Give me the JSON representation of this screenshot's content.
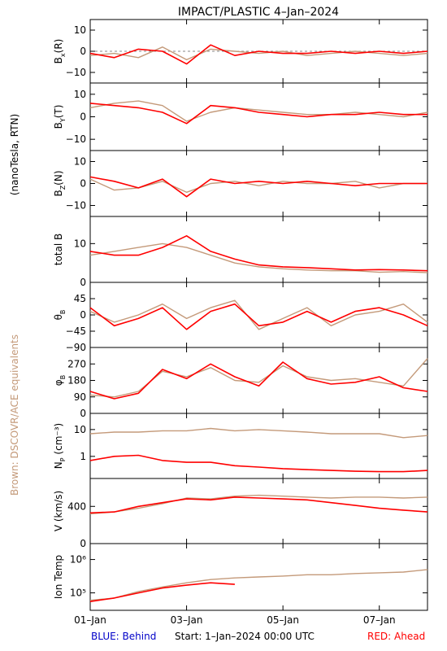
{
  "title": "IMPACT/PLASTIC     4–Jan–2024",
  "left_label_top": "(nanoTesla, RTN)",
  "left_label_bottom": "Brown: DSCOVR/ACE equivalents",
  "footer": {
    "behind": "BLUE: Behind",
    "start": "Start:   1–Jan–2024 00:00 UTC",
    "ahead": "RED: Ahead"
  },
  "colors": {
    "ahead": "#ff0000",
    "earth": "#c49a7a",
    "behind": "#0000c8",
    "axes": "#000000"
  },
  "chart_data": {
    "type": "line",
    "x_range": [
      "2024-01-01 00:00",
      "2024-01-08 00:00"
    ],
    "x_ticks": [
      {
        "label": "01–Jan",
        "day": 1
      },
      {
        "label": "03–Jan",
        "day": 3
      },
      {
        "label": "05–Jan",
        "day": 5
      },
      {
        "label": "07–Jan",
        "day": 7
      }
    ],
    "panels": [
      {
        "id": "bx",
        "label": "BX(R)",
        "label_main": "B",
        "label_sub": "x",
        "label_tail": "(R)",
        "ylim": [
          -15,
          15
        ],
        "yticks": [
          "10",
          "0",
          "−10"
        ],
        "ytick_values": [
          10,
          0,
          -10
        ],
        "zero_line": true,
        "series": [
          {
            "source": "earth",
            "days": [
              1,
              1.5,
              2,
              2.5,
              3,
              3.5,
              4,
              4.5,
              5,
              5.5,
              6,
              6.5,
              7,
              7.5,
              8
            ],
            "values": [
              -2,
              -1,
              -3,
              2,
              -4,
              1,
              0,
              -1,
              0,
              -2,
              -1,
              0,
              -1,
              -2,
              -1
            ]
          },
          {
            "source": "ahead",
            "days": [
              1,
              1.5,
              2,
              2.5,
              3,
              3.5,
              4,
              4.5,
              5,
              5.5,
              6,
              6.5,
              7,
              7.5,
              8
            ],
            "values": [
              -1,
              -3,
              1,
              0,
              -6,
              3,
              -2,
              0,
              -1,
              -1,
              0,
              -1,
              0,
              -1,
              0
            ]
          }
        ]
      },
      {
        "id": "by",
        "label": "BY(T)",
        "label_main": "B",
        "label_sub": "Y",
        "label_tail": "(T)",
        "ylim": [
          -15,
          15
        ],
        "yticks": [
          "10",
          "0",
          "−10"
        ],
        "ytick_values": [
          10,
          0,
          -10
        ],
        "zero_line": false,
        "series": [
          {
            "source": "earth",
            "days": [
              1,
              1.5,
              2,
              2.5,
              3,
              3.5,
              4,
              4.5,
              5,
              5.5,
              6,
              6.5,
              7,
              7.5,
              8
            ],
            "values": [
              4,
              6,
              7,
              5,
              -2,
              2,
              4,
              3,
              2,
              1,
              1,
              2,
              1,
              0,
              2
            ]
          },
          {
            "source": "ahead",
            "days": [
              1,
              1.5,
              2,
              2.5,
              3,
              3.5,
              4,
              4.5,
              5,
              5.5,
              6,
              6.5,
              7,
              7.5,
              8
            ],
            "values": [
              6,
              5,
              4,
              2,
              -3,
              5,
              4,
              2,
              1,
              0,
              1,
              1,
              2,
              1,
              1
            ]
          }
        ]
      },
      {
        "id": "bz",
        "label": "BZ(N)",
        "label_main": "B",
        "label_sub": "Z",
        "label_tail": "(N)",
        "ylim": [
          -15,
          15
        ],
        "yticks": [
          "10",
          "0",
          "−10"
        ],
        "ytick_values": [
          10,
          0,
          -10
        ],
        "zero_line": false,
        "series": [
          {
            "source": "earth",
            "days": [
              1,
              1.5,
              2,
              2.5,
              3,
              3.5,
              4,
              4.5,
              5,
              5.5,
              6,
              6.5,
              7,
              7.5,
              8
            ],
            "values": [
              2,
              -3,
              -2,
              1,
              -4,
              0,
              1,
              -1,
              1,
              0,
              0,
              1,
              -2,
              0,
              0
            ]
          },
          {
            "source": "ahead",
            "days": [
              1,
              1.5,
              2,
              2.5,
              3,
              3.5,
              4,
              4.5,
              5,
              5.5,
              6,
              6.5,
              7,
              7.5,
              8
            ],
            "values": [
              3,
              1,
              -2,
              2,
              -6,
              2,
              0,
              1,
              0,
              1,
              0,
              -1,
              0,
              0,
              0
            ]
          }
        ]
      },
      {
        "id": "btot",
        "label": "total B",
        "label_main": "total B",
        "label_sub": "",
        "label_tail": "",
        "ylim": [
          0,
          17
        ],
        "yticks": [
          "10",
          "0"
        ],
        "ytick_values": [
          10,
          0
        ],
        "zero_line": false,
        "series": [
          {
            "source": "earth",
            "days": [
              1,
              1.5,
              2,
              2.5,
              3,
              3.5,
              4,
              4.5,
              5,
              5.5,
              6,
              6.5,
              7,
              7.5,
              8
            ],
            "values": [
              7,
              8,
              9,
              10,
              9,
              7,
              5,
              4,
              3.5,
              3.2,
              3,
              3,
              2.6,
              2.8,
              2.5
            ]
          },
          {
            "source": "ahead",
            "days": [
              1,
              1.5,
              2,
              2.5,
              3,
              3.5,
              4,
              4.5,
              5,
              5.5,
              6,
              6.5,
              7,
              7.5,
              8
            ],
            "values": [
              8,
              7,
              7,
              9,
              12,
              8,
              6,
              4.5,
              4,
              3.8,
              3.5,
              3.2,
              3.3,
              3.2,
              3
            ]
          }
        ]
      },
      {
        "id": "theta",
        "label": "θB",
        "label_main": "θ",
        "label_sub": "B",
        "label_tail": "",
        "ylim": [
          -90,
          90
        ],
        "yticks": [
          "45",
          "0",
          "−45",
          "−90"
        ],
        "ytick_values": [
          45,
          0,
          -45,
          -90
        ],
        "zero_line": false,
        "series": [
          {
            "source": "earth",
            "days": [
              1,
              1.5,
              2,
              2.5,
              3,
              3.5,
              4,
              4.5,
              5,
              5.5,
              6,
              6.5,
              7,
              7.5,
              8
            ],
            "values": [
              10,
              -20,
              0,
              30,
              -10,
              20,
              40,
              -40,
              -10,
              20,
              -30,
              0,
              10,
              30,
              -20
            ]
          },
          {
            "source": "ahead",
            "days": [
              1,
              1.5,
              2,
              2.5,
              3,
              3.5,
              4,
              4.5,
              5,
              5.5,
              6,
              6.5,
              7,
              7.5,
              8
            ],
            "values": [
              20,
              -30,
              -10,
              20,
              -40,
              10,
              30,
              -30,
              -20,
              10,
              -20,
              10,
              20,
              0,
              -30
            ]
          }
        ]
      },
      {
        "id": "phi",
        "label": "φB",
        "label_main": "φ",
        "label_sub": "B",
        "label_tail": "",
        "ylim": [
          0,
          360
        ],
        "yticks": [
          "270",
          "180",
          "90",
          "0"
        ],
        "ytick_values": [
          270,
          180,
          90,
          0
        ],
        "zero_line": false,
        "series": [
          {
            "source": "earth",
            "days": [
              1,
              1.5,
              2,
              2.5,
              3,
              3.5,
              4,
              4.5,
              5,
              5.5,
              6,
              6.5,
              7,
              7.5,
              8
            ],
            "values": [
              100,
              90,
              120,
              230,
              200,
              250,
              180,
              170,
              260,
              200,
              180,
              190,
              170,
              150,
              300
            ]
          },
          {
            "source": "ahead",
            "days": [
              1,
              1.5,
              2,
              2.5,
              3,
              3.5,
              4,
              4.5,
              5,
              5.5,
              6,
              6.5,
              7,
              7.5,
              8
            ],
            "values": [
              120,
              80,
              110,
              240,
              190,
              270,
              200,
              150,
              280,
              190,
              160,
              170,
              200,
              140,
              120
            ]
          }
        ]
      },
      {
        "id": "np",
        "label": "NP (cm−3)",
        "label_main": "N",
        "label_sub": "P",
        "label_tail": " (cm⁻³)",
        "ylim": [
          0.15,
          40
        ],
        "log": true,
        "yticks": [
          "10",
          "1"
        ],
        "ytick_values": [
          10,
          1
        ],
        "zero_line": false,
        "series": [
          {
            "source": "earth",
            "days": [
              1,
              1.5,
              2,
              2.5,
              3,
              3.5,
              4,
              4.5,
              5,
              5.5,
              6,
              6.5,
              7,
              7.5,
              8
            ],
            "values": [
              7,
              8,
              8,
              9,
              9,
              11,
              9,
              10,
              9,
              8,
              7,
              7,
              7,
              5,
              6
            ]
          },
          {
            "source": "ahead",
            "days": [
              1,
              1.5,
              2,
              2.5,
              3,
              3.5,
              4,
              4.5,
              5,
              5.5,
              6,
              6.5,
              7,
              7.5,
              8
            ],
            "values": [
              0.7,
              1.0,
              1.1,
              0.7,
              0.6,
              0.6,
              0.45,
              0.4,
              0.35,
              0.32,
              0.3,
              0.28,
              0.27,
              0.27,
              0.3
            ]
          }
        ]
      },
      {
        "id": "v",
        "label": "V (km/s)",
        "label_main": "V (km/s)",
        "label_sub": "",
        "label_tail": "",
        "ylim": [
          0,
          700
        ],
        "yticks": [
          "400",
          "0"
        ],
        "ytick_values": [
          400,
          0
        ],
        "zero_line": false,
        "series": [
          {
            "source": "earth",
            "days": [
              1,
              1.5,
              2,
              2.5,
              3,
              3.5,
              4,
              4.5,
              5,
              5.5,
              6,
              6.5,
              7,
              7.5,
              8
            ],
            "values": [
              320,
              340,
              380,
              430,
              490,
              480,
              510,
              520,
              510,
              500,
              490,
              500,
              500,
              490,
              500
            ]
          },
          {
            "source": "ahead",
            "days": [
              1,
              1.5,
              2,
              2.5,
              3,
              3.5,
              4,
              4.5,
              5,
              5.5,
              6,
              6.5,
              7,
              7.5,
              8
            ],
            "values": [
              330,
              340,
              400,
              440,
              480,
              470,
              500,
              490,
              480,
              470,
              440,
              410,
              380,
              360,
              340
            ]
          }
        ]
      },
      {
        "id": "temp",
        "label": "Ion Temp",
        "label_main": "Ion Temp",
        "label_sub": "",
        "label_tail": "",
        "ylim": [
          30000,
          3000000
        ],
        "log": true,
        "yticks": [
          "10⁶",
          "10⁵"
        ],
        "ytick_values": [
          1000000,
          100000
        ],
        "zero_line": false,
        "series": [
          {
            "source": "earth",
            "days": [
              1,
              1.5,
              2,
              2.5,
              3,
              3.5,
              4,
              4.5,
              5,
              5.5,
              6,
              6.5,
              7,
              7.5,
              8
            ],
            "values": [
              60000,
              70000,
              110000,
              150000,
              200000,
              250000,
              280000,
              300000,
              320000,
              350000,
              350000,
              380000,
              400000,
              420000,
              500000
            ]
          },
          {
            "source": "ahead",
            "days": [
              1,
              1.5,
              2,
              2.5,
              3,
              3.5,
              4
            ],
            "values": [
              55000,
              70000,
              100000,
              140000,
              170000,
              200000,
              180000
            ]
          }
        ]
      }
    ]
  }
}
